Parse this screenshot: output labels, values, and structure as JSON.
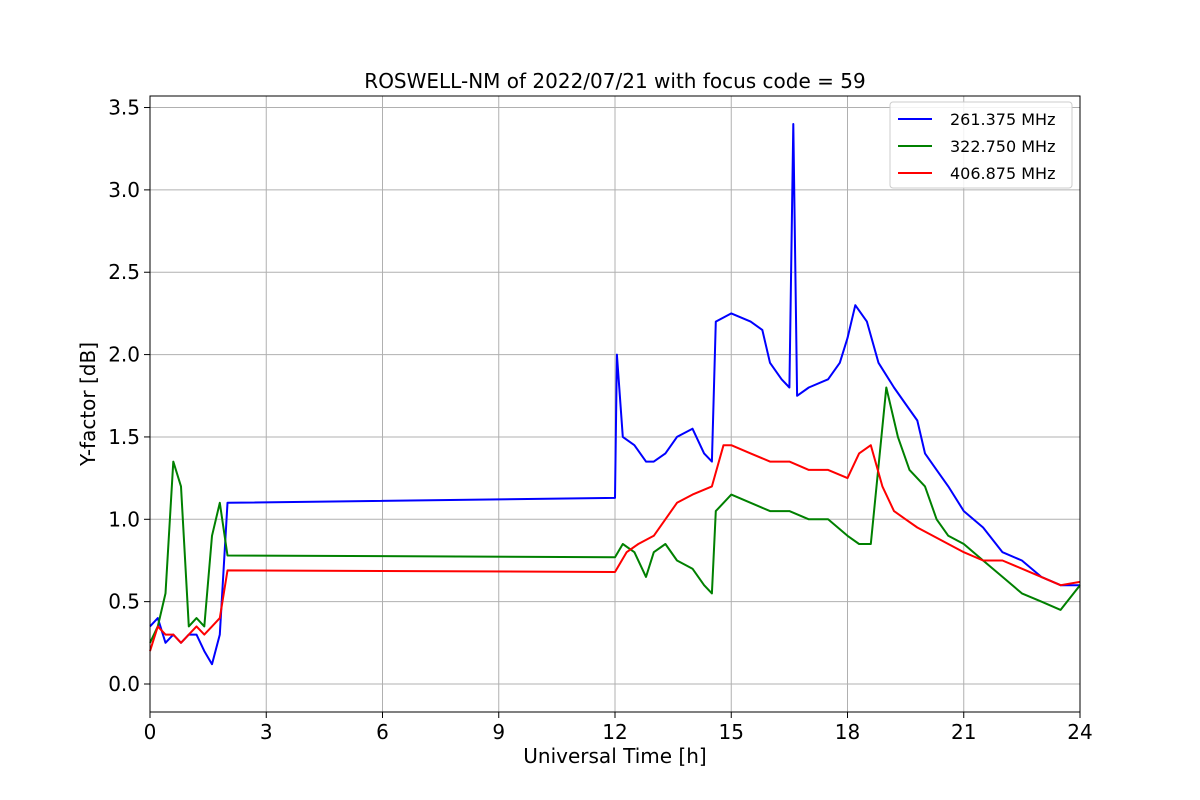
{
  "chart_data": {
    "type": "line",
    "title": "ROSWELL-NM of 2022/07/21 with focus code = 59",
    "xlabel": "Universal Time [h]",
    "ylabel": "Y-factor [dB]",
    "xlim": [
      0,
      24
    ],
    "ylim": [
      -0.17,
      3.57
    ],
    "xticks": [
      0,
      3,
      6,
      9,
      12,
      15,
      18,
      21,
      24
    ],
    "yticks": [
      0.0,
      0.5,
      1.0,
      1.5,
      2.0,
      2.5,
      3.0,
      3.5
    ],
    "xtick_labels": [
      "0",
      "3",
      "6",
      "9",
      "12",
      "15",
      "18",
      "21",
      "24"
    ],
    "ytick_labels": [
      "0.0",
      "0.5",
      "1.0",
      "1.5",
      "2.0",
      "2.5",
      "3.0",
      "3.5"
    ],
    "grid": true,
    "legend_position": "top-right",
    "series": [
      {
        "name": "261.375 MHz",
        "color": "#0000ff",
        "x": [
          0.0,
          0.2,
          0.4,
          0.6,
          0.8,
          1.0,
          1.2,
          1.4,
          1.6,
          1.8,
          2.0,
          12.0,
          12.05,
          12.2,
          12.5,
          12.8,
          13.0,
          13.3,
          13.6,
          14.0,
          14.3,
          14.5,
          14.6,
          15.0,
          15.5,
          15.8,
          16.0,
          16.3,
          16.5,
          16.6,
          16.7,
          17.0,
          17.5,
          17.8,
          18.0,
          18.2,
          18.5,
          18.8,
          19.2,
          19.5,
          19.8,
          20.0,
          20.3,
          20.6,
          21.0,
          21.5,
          22.0,
          22.5,
          23.0,
          23.5,
          24.0
        ],
        "y": [
          0.35,
          0.4,
          0.25,
          0.3,
          0.25,
          0.3,
          0.3,
          0.2,
          0.12,
          0.3,
          1.1,
          1.13,
          2.0,
          1.5,
          1.45,
          1.35,
          1.35,
          1.4,
          1.5,
          1.55,
          1.4,
          1.35,
          2.2,
          2.25,
          2.2,
          2.15,
          1.95,
          1.85,
          1.8,
          3.4,
          1.75,
          1.8,
          1.85,
          1.95,
          2.1,
          2.3,
          2.2,
          1.95,
          1.8,
          1.7,
          1.6,
          1.4,
          1.3,
          1.2,
          1.05,
          0.95,
          0.8,
          0.75,
          0.65,
          0.6,
          0.6
        ]
      },
      {
        "name": "322.750 MHz",
        "color": "#008000",
        "x": [
          0.0,
          0.2,
          0.4,
          0.6,
          0.8,
          1.0,
          1.2,
          1.4,
          1.6,
          1.8,
          2.0,
          12.0,
          12.2,
          12.5,
          12.8,
          13.0,
          13.3,
          13.6,
          14.0,
          14.3,
          14.5,
          14.6,
          15.0,
          15.5,
          16.0,
          16.5,
          17.0,
          17.5,
          18.0,
          18.3,
          18.6,
          19.0,
          19.3,
          19.6,
          20.0,
          20.3,
          20.6,
          21.0,
          21.5,
          22.0,
          22.5,
          23.0,
          23.5,
          24.0
        ],
        "y": [
          0.25,
          0.35,
          0.55,
          1.35,
          1.2,
          0.35,
          0.4,
          0.35,
          0.9,
          1.1,
          0.78,
          0.77,
          0.85,
          0.8,
          0.65,
          0.8,
          0.85,
          0.75,
          0.7,
          0.6,
          0.55,
          1.05,
          1.15,
          1.1,
          1.05,
          1.05,
          1.0,
          1.0,
          0.9,
          0.85,
          0.85,
          1.8,
          1.5,
          1.3,
          1.2,
          1.0,
          0.9,
          0.85,
          0.75,
          0.65,
          0.55,
          0.5,
          0.45,
          0.6
        ]
      },
      {
        "name": "406.875 MHz",
        "color": "#ff0000",
        "x": [
          0.0,
          0.2,
          0.4,
          0.6,
          0.8,
          1.0,
          1.2,
          1.4,
          1.6,
          1.8,
          2.0,
          12.0,
          12.3,
          12.6,
          13.0,
          13.3,
          13.6,
          14.0,
          14.5,
          14.8,
          15.0,
          15.5,
          16.0,
          16.5,
          17.0,
          17.5,
          18.0,
          18.3,
          18.6,
          18.9,
          19.2,
          19.5,
          19.8,
          20.2,
          20.6,
          21.0,
          21.5,
          22.0,
          22.5,
          23.0,
          23.5,
          24.0
        ],
        "y": [
          0.2,
          0.35,
          0.3,
          0.3,
          0.25,
          0.3,
          0.35,
          0.3,
          0.35,
          0.4,
          0.69,
          0.68,
          0.8,
          0.85,
          0.9,
          1.0,
          1.1,
          1.15,
          1.2,
          1.45,
          1.45,
          1.4,
          1.35,
          1.35,
          1.3,
          1.3,
          1.25,
          1.4,
          1.45,
          1.2,
          1.05,
          1.0,
          0.95,
          0.9,
          0.85,
          0.8,
          0.75,
          0.75,
          0.7,
          0.65,
          0.6,
          0.62
        ]
      }
    ]
  }
}
